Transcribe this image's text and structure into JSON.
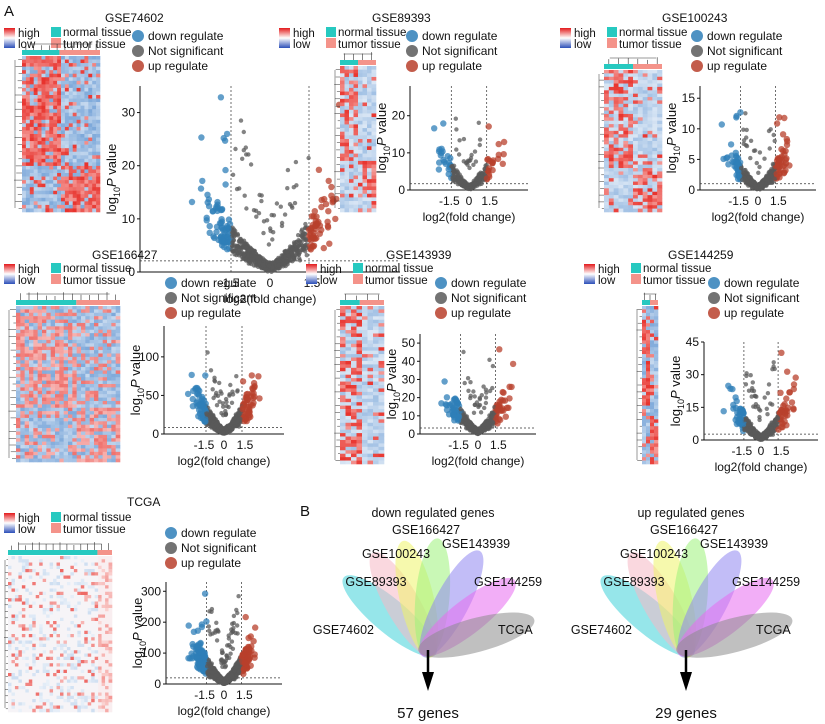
{
  "panel_a_label": "A",
  "panel_b_label": "B",
  "colors": {
    "high": "#e31a1c",
    "low": "#2c4fb8",
    "normal_tissue": "#27c9c0",
    "tumor_tissue": "#f4938a",
    "down": "#2f7fb8",
    "ns": "#5a5a5a",
    "up": "#b8402c",
    "hm_red": "#e8332d",
    "hm_blue": "#6f9fd6",
    "hm_white": "#f4f4f8"
  },
  "legend": {
    "high": "high",
    "low": "low",
    "normal_tissue": "normal tissue",
    "tumor_tissue": "tumor tissue",
    "down": "down regulate",
    "ns": "Not significant",
    "up": "up regulate"
  },
  "axis": {
    "xlabel": "log2(fold change)",
    "ylabel_prefix": "log",
    "ylabel_sub": "10",
    "ylabel_p": "P",
    "ylabel_suffix": " value",
    "xticks": [
      "-1.5",
      "0",
      "1.5"
    ]
  },
  "chart_data": [
    {
      "type": "scatter",
      "title": "GSE74602",
      "ylim": [
        0,
        35
      ],
      "yticks": [
        0,
        10,
        20,
        30
      ],
      "fc_cutoff": 1.5,
      "p_line": 1.3,
      "density": "high"
    },
    {
      "type": "scatter",
      "title": "GSE89393",
      "ylim": [
        0,
        28
      ],
      "yticks": [
        0,
        10,
        20
      ],
      "fc_cutoff": 1.5,
      "p_line": 1.3,
      "density": "low"
    },
    {
      "type": "scatter",
      "title": "GSE100243",
      "ylim": [
        0,
        17
      ],
      "yticks": [
        0,
        5,
        10,
        15
      ],
      "fc_cutoff": 1.5,
      "p_line": 1.3,
      "density": "medium"
    },
    {
      "type": "scatter",
      "title": "GSE166427",
      "ylim": [
        0,
        140
      ],
      "yticks": [
        0,
        50,
        100
      ],
      "fc_cutoff": 1.5,
      "p_line": 1.3,
      "density": "high"
    },
    {
      "type": "scatter",
      "title": "GSE143939",
      "ylim": [
        0,
        55
      ],
      "yticks": [
        0,
        10,
        20,
        30,
        40,
        50
      ],
      "fc_cutoff": 1.5,
      "p_line": 1.3,
      "density": "medium"
    },
    {
      "type": "scatter",
      "title": "GSE144259",
      "ylim": [
        0,
        45
      ],
      "yticks": [
        0,
        15,
        30,
        45
      ],
      "fc_cutoff": 1.5,
      "p_line": 1.3,
      "density": "medium"
    },
    {
      "type": "scatter",
      "title": "TCGA",
      "ylim": [
        0,
        330
      ],
      "yticks": [
        0,
        100,
        200,
        300
      ],
      "fc_cutoff": 1.5,
      "p_line": 1.3,
      "density": "very-high"
    }
  ],
  "venn": [
    {
      "title": "down regulated genes",
      "sets": [
        "GSE74602",
        "GSE89393",
        "GSE100243",
        "GSE166427",
        "GSE143939",
        "GSE144259",
        "TCGA"
      ],
      "intersection": "57 genes"
    },
    {
      "title": "up regulated genes",
      "sets": [
        "GSE74602",
        "GSE89393",
        "GSE100243",
        "GSE166427",
        "GSE143939",
        "GSE144259",
        "TCGA"
      ],
      "intersection": "29 genes"
    }
  ],
  "venn_colors": [
    "#3fd1d9",
    "#f5b8c4",
    "#eef46a",
    "#9cf27a",
    "#8f86f0",
    "#e86cf0",
    "#8c8c8c"
  ]
}
